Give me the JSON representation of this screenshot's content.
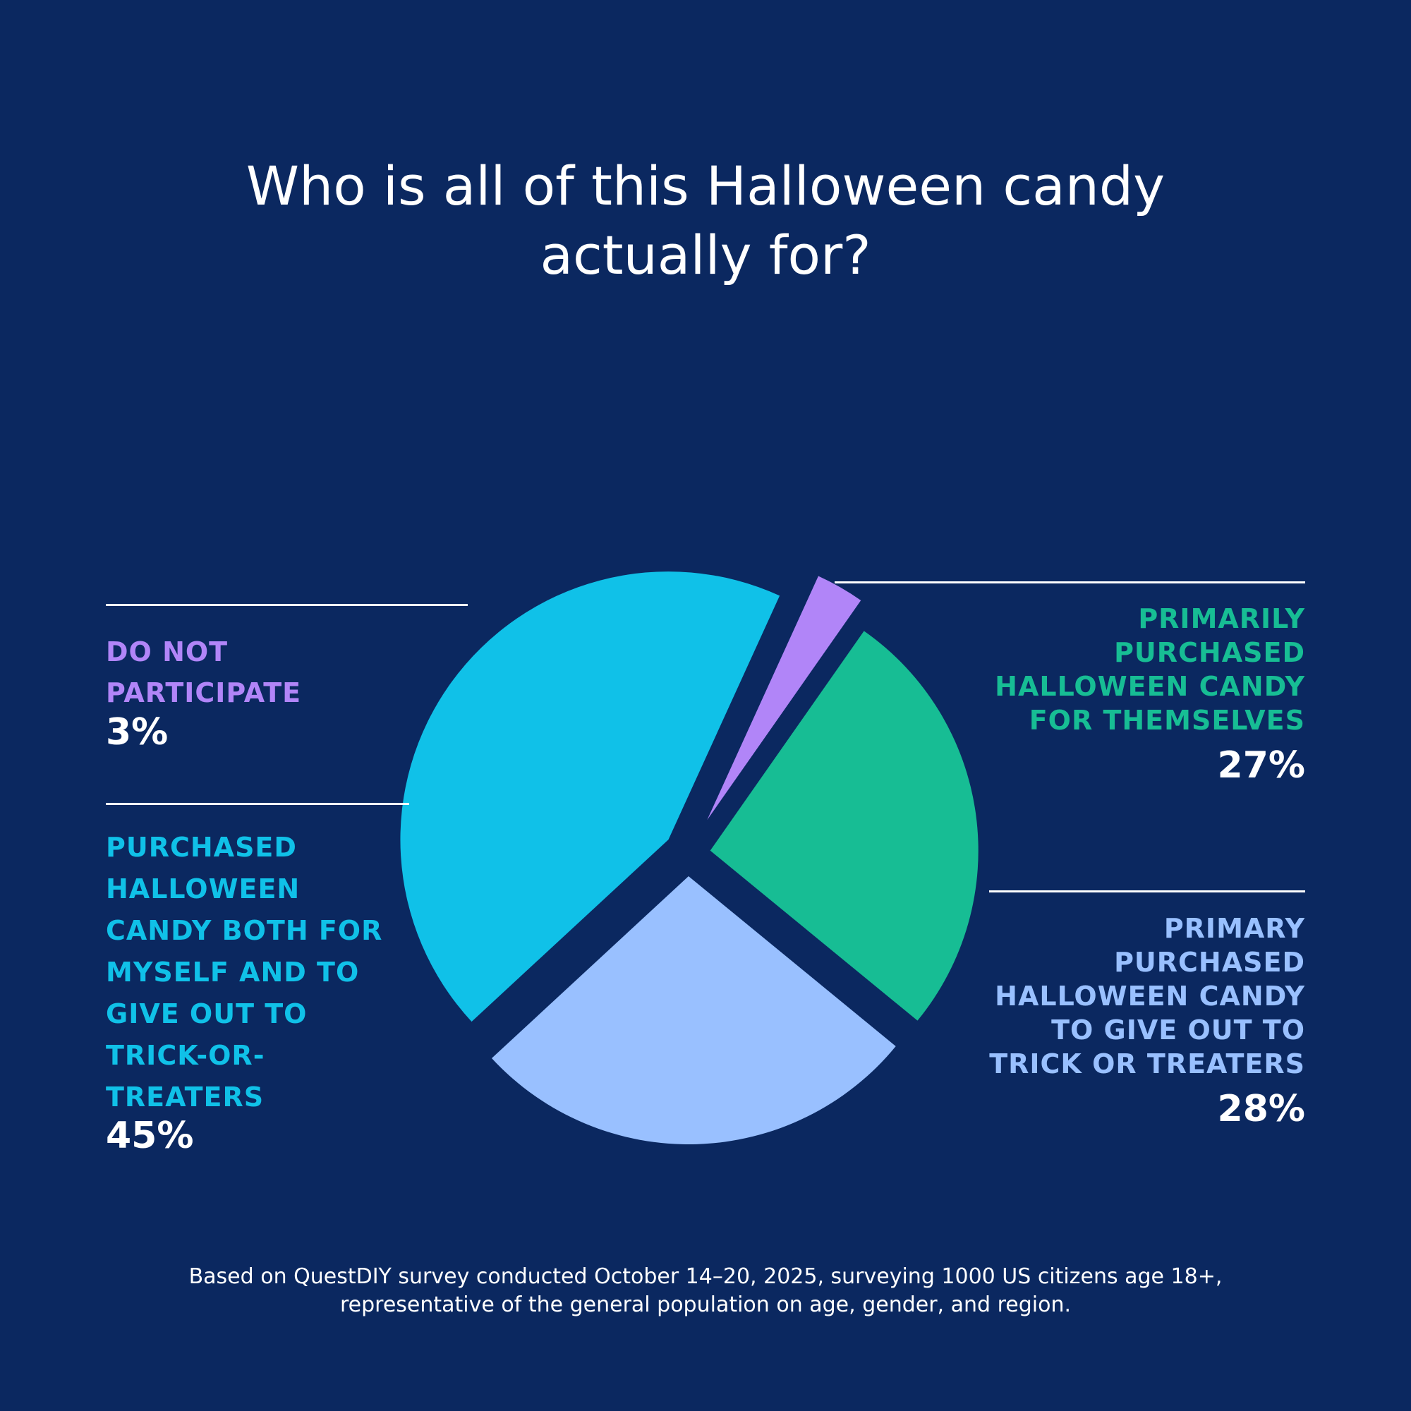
{
  "title": {
    "line1": "Who is all of this Halloween candy",
    "line2": "actually for?"
  },
  "colors": {
    "background": "#0b2860",
    "themselves": "#17bd94",
    "trick_or_treaters": "#99c0ff",
    "both": "#10c1e8",
    "do_not_participate": "#b185f8",
    "text": "#ffffff"
  },
  "chart_data": {
    "type": "pie",
    "title": "Who is all of this Halloween candy actually for?",
    "slices": [
      {
        "key": "themselves",
        "label_lines": [
          "PRIMARILY",
          "PURCHASED",
          "HALLOWEEN CANDY",
          "FOR THEMSELVES"
        ],
        "value": 27,
        "display": "27%",
        "color": "#17bd94"
      },
      {
        "key": "trick_or_treaters",
        "label_lines": [
          "PRIMARY",
          "PURCHASED",
          "HALLOWEEN CANDY",
          "TO GIVE OUT TO",
          "TRICK OR TREATERS"
        ],
        "value": 28,
        "display": "28%",
        "color": "#99c0ff"
      },
      {
        "key": "both",
        "label_lines": [
          "PURCHASED",
          "HALLOWEEN",
          "CANDY BOTH FOR",
          "MYSELF AND TO",
          "GIVE OUT TO",
          "TRICK-OR-",
          "TREATERS"
        ],
        "value": 45,
        "display": "45%",
        "color": "#10c1e8"
      },
      {
        "key": "do_not_participate",
        "label_lines": [
          "DO NOT",
          "PARTICIPATE"
        ],
        "value": 3,
        "display": "3%",
        "color": "#b185f8"
      }
    ]
  },
  "footnote": {
    "line1": "Based on QuestDIY survey conducted October 14–20, 2025, surveying 1000 US citizens age 18+,",
    "line2": "representative of the general population on age, gender, and region."
  }
}
